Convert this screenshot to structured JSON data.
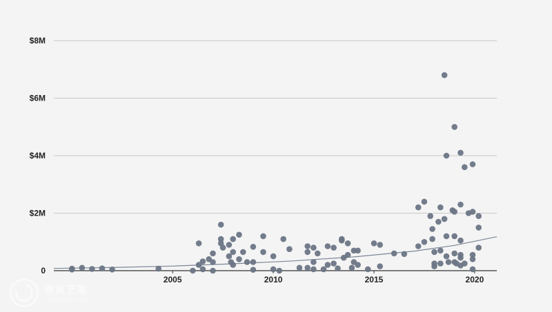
{
  "chart_data": {
    "type": "scatter",
    "title": "",
    "xlabel": "",
    "ylabel": "",
    "xlim": [
      1999.1,
      2021.1
    ],
    "ylim": [
      0,
      8000000
    ],
    "x_ticks": [
      {
        "value": 2005,
        "label": "2005"
      },
      {
        "value": 2010,
        "label": "2010"
      },
      {
        "value": 2015,
        "label": "2015"
      },
      {
        "value": 2020,
        "label": "2020"
      }
    ],
    "y_ticks": [
      {
        "value": 0,
        "label": "0"
      },
      {
        "value": 2000000,
        "label": "$2M"
      },
      {
        "value": 4000000,
        "label": "$4M"
      },
      {
        "value": 6000000,
        "label": "$6M"
      },
      {
        "value": 8000000,
        "label": "$8M"
      }
    ],
    "grid": true,
    "point_color": "#6b7585",
    "trend_color": "#7a8596",
    "grid_color": "#c8c8c8",
    "trend_line": {
      "x": [
        1999.1,
        2002,
        2005,
        2008,
        2011,
        2014,
        2017,
        2019,
        2021.1
      ],
      "y": [
        80000,
        110000,
        160000,
        240000,
        340000,
        480000,
        680000,
        880000,
        1180000
      ]
    },
    "points": [
      {
        "x": 2000.0,
        "y": 70000
      },
      {
        "x": 2000.0,
        "y": 40000
      },
      {
        "x": 2000.5,
        "y": 100000
      },
      {
        "x": 2001.0,
        "y": 60000
      },
      {
        "x": 2001.5,
        "y": 80000
      },
      {
        "x": 2002.0,
        "y": 40000
      },
      {
        "x": 2004.3,
        "y": 70000
      },
      {
        "x": 2006.0,
        "y": 0
      },
      {
        "x": 2006.3,
        "y": 950000
      },
      {
        "x": 2006.3,
        "y": 200000
      },
      {
        "x": 2006.5,
        "y": 320000
      },
      {
        "x": 2006.5,
        "y": 50000
      },
      {
        "x": 2006.8,
        "y": 400000
      },
      {
        "x": 2007.0,
        "y": 0
      },
      {
        "x": 2007.0,
        "y": 600000
      },
      {
        "x": 2007.0,
        "y": 300000
      },
      {
        "x": 2007.4,
        "y": 1600000
      },
      {
        "x": 2007.4,
        "y": 1100000
      },
      {
        "x": 2007.4,
        "y": 950000
      },
      {
        "x": 2007.5,
        "y": 800000
      },
      {
        "x": 2007.8,
        "y": 900000
      },
      {
        "x": 2007.8,
        "y": 500000
      },
      {
        "x": 2007.9,
        "y": 300000
      },
      {
        "x": 2008.0,
        "y": 1100000
      },
      {
        "x": 2008.0,
        "y": 650000
      },
      {
        "x": 2008.0,
        "y": 200000
      },
      {
        "x": 2008.3,
        "y": 400000
      },
      {
        "x": 2008.3,
        "y": 1250000
      },
      {
        "x": 2008.5,
        "y": 650000
      },
      {
        "x": 2008.7,
        "y": 300000
      },
      {
        "x": 2009.0,
        "y": 30000
      },
      {
        "x": 2009.0,
        "y": 830000
      },
      {
        "x": 2009.0,
        "y": 300000
      },
      {
        "x": 2009.5,
        "y": 1200000
      },
      {
        "x": 2009.5,
        "y": 650000
      },
      {
        "x": 2010.0,
        "y": 500000
      },
      {
        "x": 2010.0,
        "y": 50000
      },
      {
        "x": 2010.3,
        "y": 0
      },
      {
        "x": 2010.5,
        "y": 1100000
      },
      {
        "x": 2010.8,
        "y": 750000
      },
      {
        "x": 2011.3,
        "y": 100000
      },
      {
        "x": 2011.7,
        "y": 850000
      },
      {
        "x": 2011.7,
        "y": 650000
      },
      {
        "x": 2011.7,
        "y": 100000
      },
      {
        "x": 2012.0,
        "y": 800000
      },
      {
        "x": 2012.0,
        "y": 300000
      },
      {
        "x": 2012.0,
        "y": 50000
      },
      {
        "x": 2012.2,
        "y": 600000
      },
      {
        "x": 2012.5,
        "y": 50000
      },
      {
        "x": 2012.7,
        "y": 850000
      },
      {
        "x": 2012.7,
        "y": 200000
      },
      {
        "x": 2013.0,
        "y": 800000
      },
      {
        "x": 2013.0,
        "y": 250000
      },
      {
        "x": 2013.2,
        "y": 80000
      },
      {
        "x": 2013.4,
        "y": 1100000
      },
      {
        "x": 2013.4,
        "y": 1050000
      },
      {
        "x": 2013.5,
        "y": 450000
      },
      {
        "x": 2013.7,
        "y": 950000
      },
      {
        "x": 2013.7,
        "y": 550000
      },
      {
        "x": 2013.9,
        "y": 100000
      },
      {
        "x": 2014.0,
        "y": 700000
      },
      {
        "x": 2014.0,
        "y": 300000
      },
      {
        "x": 2014.2,
        "y": 700000
      },
      {
        "x": 2014.2,
        "y": 200000
      },
      {
        "x": 2014.7,
        "y": 50000
      },
      {
        "x": 2015.0,
        "y": 950000
      },
      {
        "x": 2015.3,
        "y": 900000
      },
      {
        "x": 2015.3,
        "y": 150000
      },
      {
        "x": 2016.0,
        "y": 600000
      },
      {
        "x": 2016.5,
        "y": 580000
      },
      {
        "x": 2017.2,
        "y": 2200000
      },
      {
        "x": 2017.2,
        "y": 850000
      },
      {
        "x": 2017.5,
        "y": 2400000
      },
      {
        "x": 2017.5,
        "y": 1000000
      },
      {
        "x": 2017.8,
        "y": 1900000
      },
      {
        "x": 2017.9,
        "y": 1450000
      },
      {
        "x": 2017.9,
        "y": 1100000
      },
      {
        "x": 2018.0,
        "y": 650000
      },
      {
        "x": 2018.0,
        "y": 250000
      },
      {
        "x": 2018.0,
        "y": 150000
      },
      {
        "x": 2018.2,
        "y": 1700000
      },
      {
        "x": 2018.3,
        "y": 2200000
      },
      {
        "x": 2018.3,
        "y": 700000
      },
      {
        "x": 2018.3,
        "y": 250000
      },
      {
        "x": 2018.5,
        "y": 6800000
      },
      {
        "x": 2018.5,
        "y": 1800000
      },
      {
        "x": 2018.6,
        "y": 4000000
      },
      {
        "x": 2018.6,
        "y": 1200000
      },
      {
        "x": 2018.6,
        "y": 500000
      },
      {
        "x": 2018.7,
        "y": 300000
      },
      {
        "x": 2018.9,
        "y": 2100000
      },
      {
        "x": 2019.0,
        "y": 5000000
      },
      {
        "x": 2019.0,
        "y": 2050000
      },
      {
        "x": 2019.0,
        "y": 1200000
      },
      {
        "x": 2019.0,
        "y": 600000
      },
      {
        "x": 2019.0,
        "y": 300000
      },
      {
        "x": 2019.1,
        "y": 250000
      },
      {
        "x": 2019.3,
        "y": 4100000
      },
      {
        "x": 2019.3,
        "y": 2300000
      },
      {
        "x": 2019.3,
        "y": 1050000
      },
      {
        "x": 2019.3,
        "y": 550000
      },
      {
        "x": 2019.3,
        "y": 450000
      },
      {
        "x": 2019.3,
        "y": 180000
      },
      {
        "x": 2019.5,
        "y": 3600000
      },
      {
        "x": 2019.5,
        "y": 250000
      },
      {
        "x": 2019.7,
        "y": 2000000
      },
      {
        "x": 2019.9,
        "y": 3700000
      },
      {
        "x": 2019.9,
        "y": 2050000
      },
      {
        "x": 2019.9,
        "y": 550000
      },
      {
        "x": 2019.9,
        "y": 400000
      },
      {
        "x": 2019.9,
        "y": 50000
      },
      {
        "x": 2020.2,
        "y": 1900000
      },
      {
        "x": 2020.2,
        "y": 1500000
      },
      {
        "x": 2020.2,
        "y": 800000
      }
    ]
  },
  "watermark": {
    "logo_icon": "camera-lens-logo-icon",
    "title": "崇真艺客",
    "subtitle": "TRUEART.COM"
  }
}
